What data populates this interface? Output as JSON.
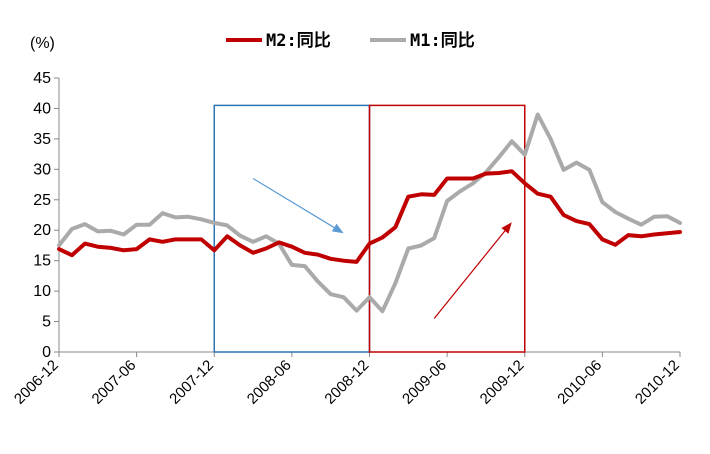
{
  "chart_data": {
    "type": "line",
    "unit_label": "(%)",
    "ylim": [
      0,
      45
    ],
    "y_ticks": [
      "0",
      "5",
      "10",
      "15",
      "20",
      "25",
      "30",
      "35",
      "40",
      "45"
    ],
    "x_ticks": [
      "2006-12",
      "2007-06",
      "2007-12",
      "2008-06",
      "2008-12",
      "2009-06",
      "2009-12",
      "2010-06",
      "2010-12"
    ],
    "x_start": "2006-12",
    "grid": false,
    "legend_position": "top",
    "series": [
      {
        "name": "M2:同比",
        "color": "#c00000",
        "values": [
          16.9,
          15.9,
          17.8,
          17.3,
          17.1,
          16.7,
          16.9,
          18.5,
          18.1,
          18.5,
          18.5,
          18.5,
          16.7,
          19.0,
          17.5,
          16.3,
          17.0,
          18.0,
          17.3,
          16.3,
          16.0,
          15.3,
          15.0,
          14.8,
          17.8,
          18.8,
          20.5,
          25.5,
          25.9,
          25.8,
          28.5,
          28.5,
          28.5,
          29.3,
          29.4,
          29.7,
          27.7,
          26.0,
          25.5,
          22.5,
          21.5,
          21.0,
          18.5,
          17.6,
          19.2,
          19.0,
          19.3,
          19.5,
          19.7
        ]
      },
      {
        "name": "M1:同比",
        "color": "#aaaaaa",
        "values": [
          17.5,
          20.2,
          21.0,
          19.8,
          19.9,
          19.3,
          20.9,
          20.9,
          22.8,
          22.1,
          22.2,
          21.8,
          21.2,
          20.8,
          19.1,
          18.1,
          19.0,
          17.8,
          14.3,
          14.1,
          11.6,
          9.5,
          9.0,
          6.8,
          9.0,
          6.7,
          11.3,
          17.0,
          17.5,
          18.7,
          24.8,
          26.4,
          27.7,
          29.5,
          32.0,
          34.6,
          32.4,
          39.0,
          35.0,
          29.9,
          31.1,
          29.9,
          24.6,
          23.0,
          21.9,
          20.9,
          22.2,
          22.3,
          21.2
        ]
      }
    ],
    "annotations": [
      {
        "type": "box",
        "color": "#2e75b6",
        "x_from": "2007-12",
        "x_to": "2008-12",
        "y_from": 0,
        "y_to": 40.5
      },
      {
        "type": "box",
        "color": "#c00000",
        "x_from": "2008-12",
        "x_to": "2009-12",
        "y_from": 0,
        "y_to": 40.5
      },
      {
        "type": "arrow",
        "color": "#5b9bd5",
        "x_from": "2008-03",
        "y_from": 28.5,
        "x_to": "2008-10",
        "y_to": 19.5,
        "direction": "down"
      },
      {
        "type": "arrow",
        "color": "#c00000",
        "x_from": "2009-05",
        "y_from": 5.5,
        "x_to": "2009-11",
        "y_to": 21.3,
        "direction": "up"
      }
    ]
  }
}
